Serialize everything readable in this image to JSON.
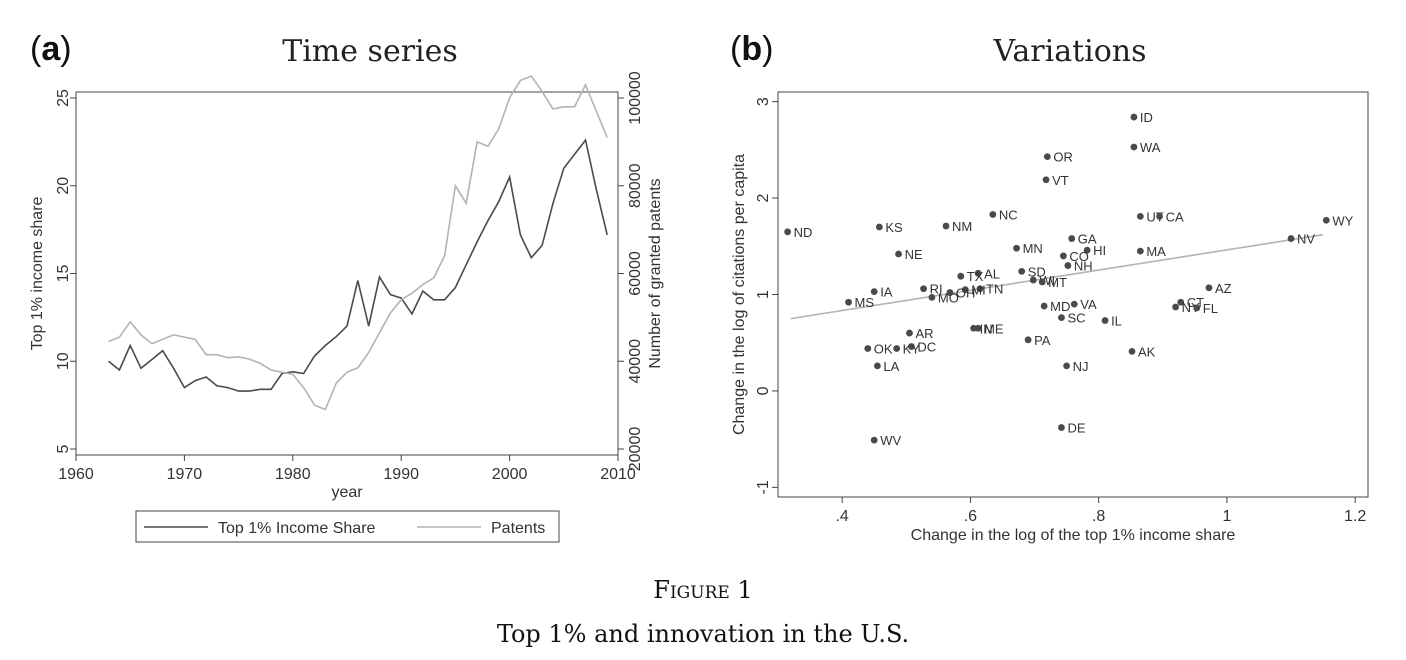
{
  "panel_a": {
    "letter_open": "(",
    "letter": "a",
    "letter_close": ")",
    "title": "Time series"
  },
  "panel_b": {
    "letter_open": "(",
    "letter": "b",
    "letter_close": ")",
    "title": "Variations"
  },
  "caption": {
    "figure": "Figure 1",
    "text": "Top 1% and innovation in the U.S."
  },
  "colors": {
    "income": "#4a4a4a",
    "patents": "#b3b3b3",
    "fit": "#b3b3b3",
    "dot": "#4a4a4a",
    "frame": "#444444"
  },
  "chart_data": [
    {
      "type": "line",
      "title": "Time series",
      "xlabel": "year",
      "ylabel": "Top 1% income share",
      "ylabel_right": "Number of granted patents",
      "xlim": [
        1960,
        2010
      ],
      "ylim": [
        5,
        25
      ],
      "ylim_right": [
        20000,
        100000
      ],
      "xticks": [
        1960,
        1970,
        1980,
        1990,
        2000,
        2010
      ],
      "yticks": [
        5,
        10,
        15,
        20,
        25
      ],
      "yticks_right": [
        20000,
        40000,
        60000,
        80000,
        100000
      ],
      "grid": false,
      "legend_position": "bottom",
      "x": [
        1963,
        1964,
        1965,
        1966,
        1967,
        1968,
        1969,
        1970,
        1971,
        1972,
        1973,
        1974,
        1975,
        1976,
        1977,
        1978,
        1979,
        1980,
        1981,
        1982,
        1983,
        1984,
        1985,
        1986,
        1987,
        1988,
        1989,
        1990,
        1991,
        1992,
        1993,
        1994,
        1995,
        1996,
        1997,
        1998,
        1999,
        2000,
        2001,
        2002,
        2003,
        2004,
        2005,
        2006,
        2007,
        2008,
        2009
      ],
      "series": [
        {
          "name": "Top 1% Income Share",
          "axis": "left",
          "values": [
            10.0,
            9.5,
            10.9,
            9.6,
            10.1,
            10.6,
            9.6,
            8.5,
            8.9,
            9.1,
            8.6,
            8.5,
            8.3,
            8.3,
            8.4,
            8.4,
            9.3,
            9.4,
            9.3,
            10.3,
            10.9,
            11.4,
            12.0,
            14.6,
            12.0,
            14.8,
            13.8,
            13.6,
            12.7,
            14.0,
            13.5,
            13.5,
            14.2,
            15.5,
            16.8,
            18.0,
            19.1,
            20.5,
            17.2,
            15.9,
            16.6,
            19.0,
            21.0,
            21.8,
            22.6,
            19.8,
            17.2
          ]
        },
        {
          "name": "Patents",
          "axis": "right",
          "values": [
            44500,
            45500,
            49000,
            46000,
            44000,
            45000,
            46000,
            45500,
            45000,
            41500,
            41500,
            40800,
            41000,
            40500,
            39500,
            38000,
            37500,
            37000,
            34000,
            30000,
            29000,
            35000,
            37500,
            38500,
            42000,
            46500,
            51000,
            54000,
            55500,
            57500,
            59000,
            64000,
            80000,
            76000,
            90000,
            89000,
            93000,
            100000,
            104000,
            105000,
            101500,
            97500,
            98000,
            98000,
            103000,
            97000,
            91000
          ]
        }
      ]
    },
    {
      "type": "scatter",
      "title": "Variations",
      "xlabel": "Change in the log of the top 1% income share",
      "ylabel": "Change in the log of citations per capita",
      "xlim": [
        0.3,
        1.22
      ],
      "ylim": [
        -1.1,
        3.1
      ],
      "xticks": [
        0.4,
        0.6,
        0.8,
        1.0,
        1.2
      ],
      "xtick_labels": [
        ".4",
        ".6",
        ".8",
        "1",
        "1.2"
      ],
      "yticks": [
        -1,
        0,
        1,
        2,
        3
      ],
      "ytick_labels": [
        "-1",
        "0",
        "1",
        "2",
        "3"
      ],
      "grid": false,
      "fit_line": {
        "x": [
          0.32,
          1.15
        ],
        "y": [
          0.75,
          1.62
        ]
      },
      "points": [
        {
          "label": "ID",
          "x": 0.855,
          "y": 2.84
        },
        {
          "label": "WA",
          "x": 0.855,
          "y": 2.53
        },
        {
          "label": "OR",
          "x": 0.72,
          "y": 2.43
        },
        {
          "label": "VT",
          "x": 0.718,
          "y": 2.19
        },
        {
          "label": "NC",
          "x": 0.635,
          "y": 1.83
        },
        {
          "label": "UT",
          "x": 0.865,
          "y": 1.81
        },
        {
          "label": "CA",
          "x": 0.895,
          "y": 1.81
        },
        {
          "label": "WY",
          "x": 1.155,
          "y": 1.77
        },
        {
          "label": "NM",
          "x": 0.562,
          "y": 1.71
        },
        {
          "label": "KS",
          "x": 0.458,
          "y": 1.7
        },
        {
          "label": "ND",
          "x": 0.315,
          "y": 1.65
        },
        {
          "label": "GA",
          "x": 0.758,
          "y": 1.58
        },
        {
          "label": "NV",
          "x": 1.1,
          "y": 1.58
        },
        {
          "label": "MN",
          "x": 0.672,
          "y": 1.48
        },
        {
          "label": "HI",
          "x": 0.782,
          "y": 1.46
        },
        {
          "label": "MA",
          "x": 0.865,
          "y": 1.45
        },
        {
          "label": "NE",
          "x": 0.488,
          "y": 1.42
        },
        {
          "label": "CO",
          "x": 0.745,
          "y": 1.4
        },
        {
          "label": "NH",
          "x": 0.752,
          "y": 1.3
        },
        {
          "label": "SD",
          "x": 0.68,
          "y": 1.24
        },
        {
          "label": "AL",
          "x": 0.612,
          "y": 1.22
        },
        {
          "label": "TX",
          "x": 0.585,
          "y": 1.19
        },
        {
          "label": "WI",
          "x": 0.698,
          "y": 1.15
        },
        {
          "label": "MT",
          "x": 0.712,
          "y": 1.13
        },
        {
          "label": "AZ",
          "x": 0.972,
          "y": 1.07
        },
        {
          "label": "RI",
          "x": 0.527,
          "y": 1.06
        },
        {
          "label": "TN",
          "x": 0.615,
          "y": 1.06
        },
        {
          "label": "MI",
          "x": 0.592,
          "y": 1.05
        },
        {
          "label": "OH",
          "x": 0.568,
          "y": 1.02
        },
        {
          "label": "IA",
          "x": 0.45,
          "y": 1.03
        },
        {
          "label": "MO",
          "x": 0.54,
          "y": 0.97
        },
        {
          "label": "MS",
          "x": 0.41,
          "y": 0.92
        },
        {
          "label": "CT",
          "x": 0.928,
          "y": 0.92
        },
        {
          "label": "VA",
          "x": 0.762,
          "y": 0.9
        },
        {
          "label": "MD",
          "x": 0.715,
          "y": 0.88
        },
        {
          "label": "NY",
          "x": 0.92,
          "y": 0.87
        },
        {
          "label": "FL",
          "x": 0.953,
          "y": 0.86
        },
        {
          "label": "SC",
          "x": 0.742,
          "y": 0.76
        },
        {
          "label": "IL",
          "x": 0.81,
          "y": 0.73
        },
        {
          "label": "IN",
          "x": 0.605,
          "y": 0.65
        },
        {
          "label": "ME",
          "x": 0.612,
          "y": 0.65
        },
        {
          "label": "AR",
          "x": 0.505,
          "y": 0.6
        },
        {
          "label": "PA",
          "x": 0.69,
          "y": 0.53
        },
        {
          "label": "DC",
          "x": 0.508,
          "y": 0.46
        },
        {
          "label": "KY",
          "x": 0.485,
          "y": 0.44
        },
        {
          "label": "OK",
          "x": 0.44,
          "y": 0.44
        },
        {
          "label": "AK",
          "x": 0.852,
          "y": 0.41
        },
        {
          "label": "LA",
          "x": 0.455,
          "y": 0.26
        },
        {
          "label": "NJ",
          "x": 0.75,
          "y": 0.26
        },
        {
          "label": "DE",
          "x": 0.742,
          "y": -0.38
        },
        {
          "label": "WV",
          "x": 0.45,
          "y": -0.51
        }
      ]
    }
  ]
}
